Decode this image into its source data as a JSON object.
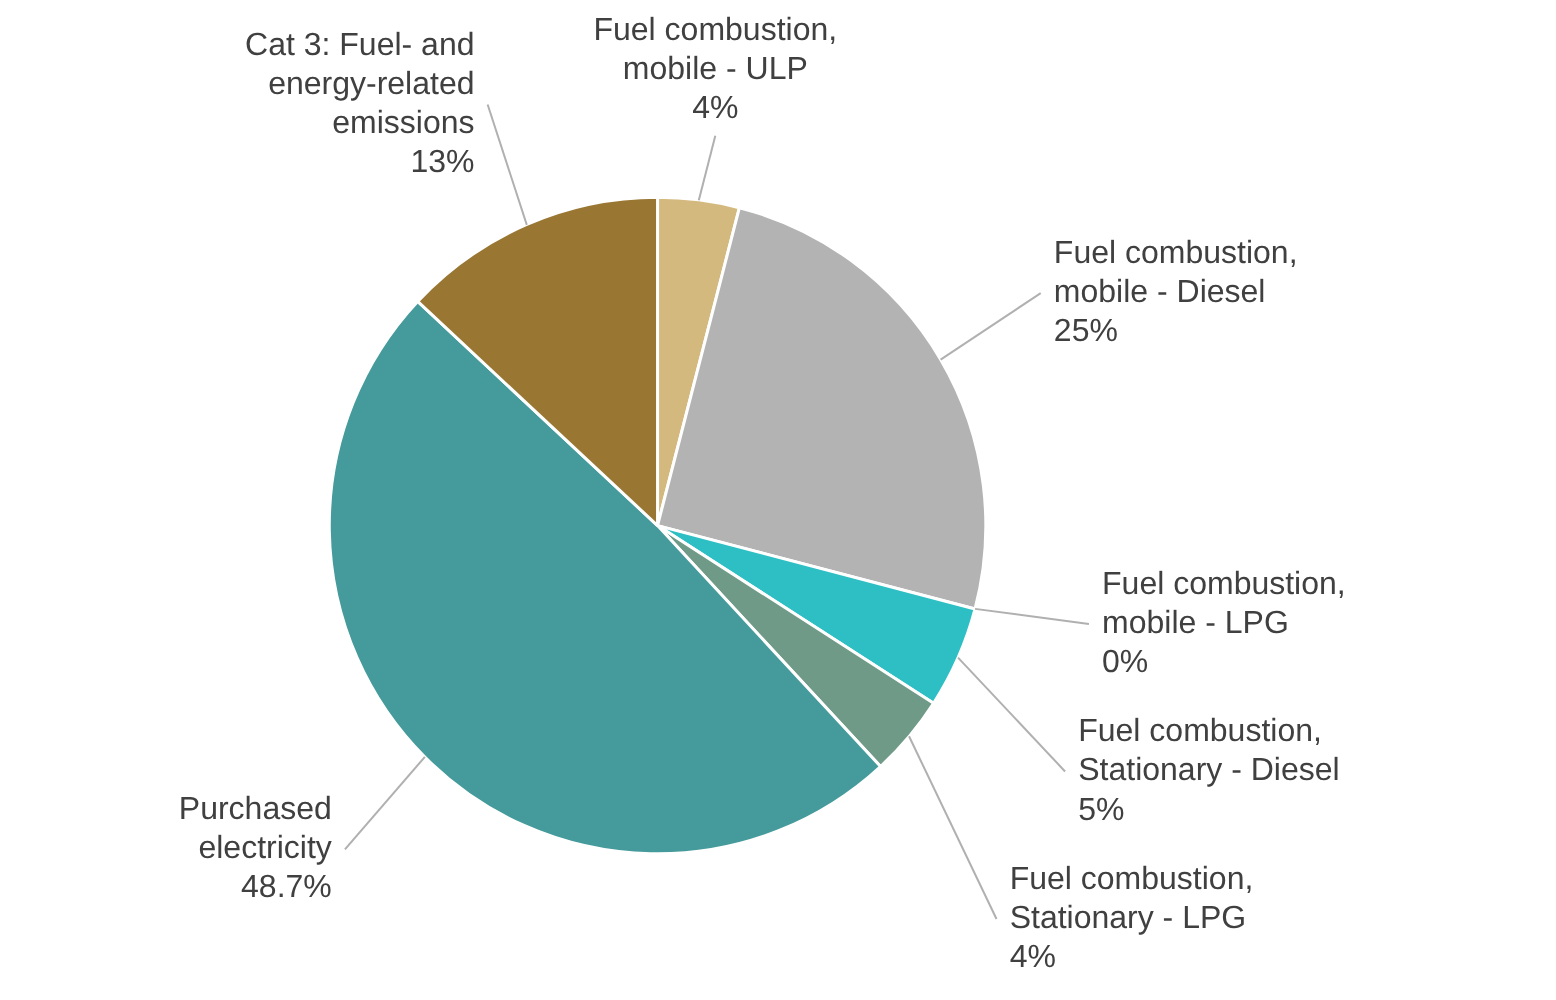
{
  "chart_data": {
    "type": "pie",
    "categories": [
      "Fuel combustion, mobile - ULP",
      "Fuel combustion, mobile - Diesel",
      "Fuel combustion, mobile - LPG",
      "Fuel combustion, Stationary - Diesel",
      "Fuel combustion, Stationary - LPG",
      "Purchased electricity",
      "Cat 3: Fuel- and energy-related emissions"
    ],
    "values": [
      4,
      25,
      0,
      5,
      4,
      48.7,
      13
    ],
    "colors": [
      "#d4b97e",
      "#b3b3b3",
      "#d9d9d9",
      "#2ebfc4",
      "#6e9a87",
      "#459a9b",
      "#997733"
    ],
    "value_labels": [
      "4%",
      "25%",
      "0%",
      "5%",
      "4%",
      "48.7%",
      "13%"
    ]
  }
}
